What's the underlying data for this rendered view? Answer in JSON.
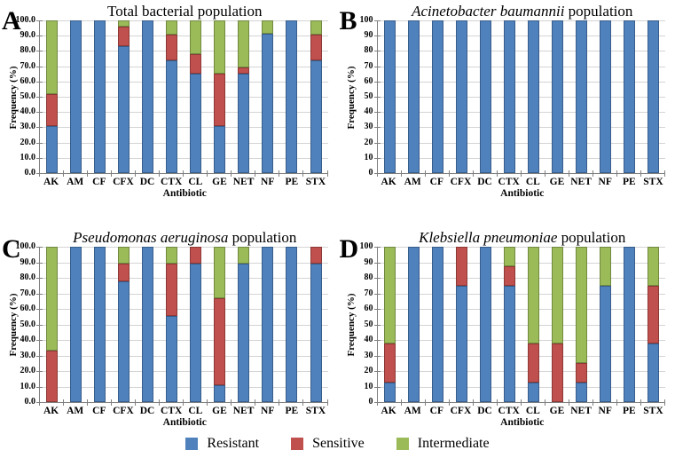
{
  "figure": {
    "xlabel": "Antibiotic",
    "ylabel": "Frequency (%)",
    "legend": [
      {
        "label": "Resistant",
        "color": "#4F81BD",
        "border": "#385D8A"
      },
      {
        "label": "Sensitive",
        "color": "#C0504D",
        "border": "#8C3836"
      },
      {
        "label": "Intermediate",
        "color": "#9BBB59",
        "border": "#71893F"
      }
    ],
    "colors": {
      "gridline": "#d4d4d4",
      "axis": "#7f7f7f",
      "background": "#ffffff"
    }
  },
  "chart_data": [
    {
      "type": "bar",
      "stacked": true,
      "panel_label": "A",
      "title_parts": [
        {
          "text": "Total bacterial population",
          "italic": false
        }
      ],
      "xlabel": "Antibiotic",
      "ylabel": "Frequency (%)",
      "ylim": [
        0,
        100
      ],
      "grid": true,
      "ytick_labels": [
        "100.0",
        "90.0",
        "80.0",
        "70.0",
        "60.0",
        "50.0",
        "40.0",
        "30.0",
        "20.0",
        "10.0",
        "0.0"
      ],
      "categories": [
        "AK",
        "AM",
        "CF",
        "CFX",
        "DC",
        "CTX",
        "CL",
        "GE",
        "NET",
        "NF",
        "PE",
        "STX"
      ],
      "series": [
        {
          "name": "Resistant",
          "color": "#4F81BD",
          "border": "#385D8A",
          "values": [
            31,
            100,
            100,
            83,
            100,
            74,
            65,
            31,
            65,
            91,
            100,
            74
          ]
        },
        {
          "name": "Sensitive",
          "color": "#C0504D",
          "border": "#8C3836",
          "values": [
            21,
            0,
            0,
            13,
            0,
            17,
            13,
            34,
            4,
            0,
            0,
            17
          ]
        },
        {
          "name": "Intermediate",
          "color": "#9BBB59",
          "border": "#71893F",
          "values": [
            48,
            0,
            0,
            4,
            0,
            9,
            22,
            35,
            31,
            9,
            0,
            9
          ]
        }
      ]
    },
    {
      "type": "bar",
      "stacked": true,
      "panel_label": "B",
      "title_parts": [
        {
          "text": "Acinetobacter baumannii",
          "italic": true
        },
        {
          "text": " population",
          "italic": false
        }
      ],
      "xlabel": "Antibiotic",
      "ylabel": "Frequency (%)",
      "ylim": [
        0,
        100
      ],
      "grid": true,
      "ytick_labels": [
        "100",
        "90",
        "80",
        "70",
        "60",
        "50",
        "40",
        "30",
        "20",
        "10",
        "0"
      ],
      "categories": [
        "AK",
        "AM",
        "CF",
        "CFX",
        "DC",
        "CTX",
        "CL",
        "GE",
        "NET",
        "NF",
        "PE",
        "STX"
      ],
      "series": [
        {
          "name": "Resistant",
          "color": "#4F81BD",
          "border": "#385D8A",
          "values": [
            100,
            100,
            100,
            100,
            100,
            100,
            100,
            100,
            100,
            100,
            100,
            100
          ]
        },
        {
          "name": "Sensitive",
          "color": "#C0504D",
          "border": "#8C3836",
          "values": [
            0,
            0,
            0,
            0,
            0,
            0,
            0,
            0,
            0,
            0,
            0,
            0
          ]
        },
        {
          "name": "Intermediate",
          "color": "#9BBB59",
          "border": "#71893F",
          "values": [
            0,
            0,
            0,
            0,
            0,
            0,
            0,
            0,
            0,
            0,
            0,
            0
          ]
        }
      ]
    },
    {
      "type": "bar",
      "stacked": true,
      "panel_label": "C",
      "title_parts": [
        {
          "text": "Pseudomonas aeruginosa",
          "italic": true
        },
        {
          "text": " population",
          "italic": false
        }
      ],
      "xlabel": "Antibiotic",
      "ylabel": "Frequency (%)",
      "ylim": [
        0,
        100
      ],
      "grid": true,
      "ytick_labels": [
        "100.0",
        "90.0",
        "80.0",
        "70.0",
        "60.0",
        "50.0",
        "40.0",
        "30.0",
        "20.0",
        "10.0",
        "0.0"
      ],
      "categories": [
        "AK",
        "AM",
        "CF",
        "CFX",
        "DC",
        "CTX",
        "CL",
        "GE",
        "NET",
        "NF",
        "PE",
        "STX"
      ],
      "series": [
        {
          "name": "Resistant",
          "color": "#4F81BD",
          "border": "#385D8A",
          "values": [
            0,
            100,
            100,
            77.8,
            100,
            55.6,
            88.9,
            11.1,
            88.9,
            100,
            100,
            88.9
          ]
        },
        {
          "name": "Sensitive",
          "color": "#C0504D",
          "border": "#8C3836",
          "values": [
            33.3,
            0,
            0,
            11.1,
            0,
            33.3,
            11.1,
            55.6,
            0,
            0,
            0,
            11.1
          ]
        },
        {
          "name": "Intermediate",
          "color": "#9BBB59",
          "border": "#71893F",
          "values": [
            66.7,
            0,
            0,
            11.1,
            0,
            11.1,
            0,
            33.3,
            11.1,
            0,
            0,
            0
          ]
        }
      ]
    },
    {
      "type": "bar",
      "stacked": true,
      "panel_label": "D",
      "title_parts": [
        {
          "text": "Klebsiella pneumoniae",
          "italic": true
        },
        {
          "text": " population",
          "italic": false
        }
      ],
      "xlabel": "Antibiotic",
      "ylabel": "Frequency (%)",
      "ylim": [
        0,
        100
      ],
      "grid": true,
      "ytick_labels": [
        "100",
        "90",
        "80",
        "70",
        "60",
        "50",
        "40",
        "30",
        "20",
        "10",
        "0"
      ],
      "categories": [
        "AK",
        "AM",
        "CF",
        "CFX",
        "DC",
        "CTX",
        "CL",
        "GE",
        "NET",
        "NF",
        "PE",
        "STX"
      ],
      "series": [
        {
          "name": "Resistant",
          "color": "#4F81BD",
          "border": "#385D8A",
          "values": [
            12.5,
            100,
            100,
            75,
            100,
            75,
            12.5,
            0,
            12.5,
            75,
            100,
            37.5
          ]
        },
        {
          "name": "Sensitive",
          "color": "#C0504D",
          "border": "#8C3836",
          "values": [
            25,
            0,
            0,
            25,
            0,
            12.5,
            25,
            37.5,
            12.5,
            0,
            0,
            37.5
          ]
        },
        {
          "name": "Intermediate",
          "color": "#9BBB59",
          "border": "#71893F",
          "values": [
            62.5,
            0,
            0,
            0,
            0,
            12.5,
            62.5,
            62.5,
            75,
            25,
            0,
            25
          ]
        }
      ]
    }
  ]
}
